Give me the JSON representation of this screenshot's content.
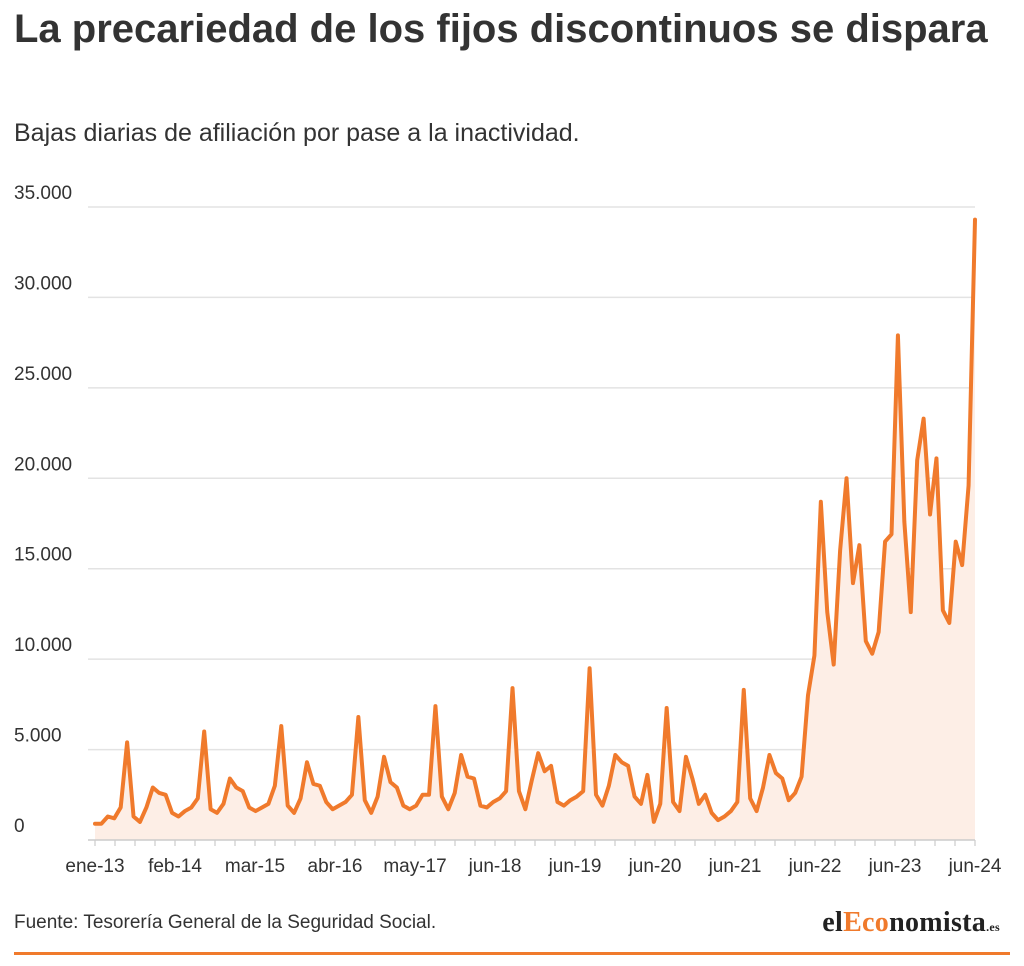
{
  "header": {
    "title": "La precariedad de los fijos discontinuos se dispara",
    "subtitle": "Bajas diarias de afiliación por pase a la inactividad."
  },
  "footer": {
    "source": "Fuente: Tesorería General de la Seguridad Social.",
    "logo": {
      "prefix": "el",
      "accent": "Eco",
      "suffix": "nomista",
      "tld": ".es"
    }
  },
  "colors": {
    "line": "#f07a2c",
    "area": "#fdeee6",
    "grid": "#e3e3e3",
    "text": "#333333",
    "logo_accent": "#f07a2c"
  },
  "chart_data": {
    "type": "area",
    "title": "La precariedad de los fijos discontinuos se dispara",
    "subtitle": "Bajas diarias de afiliación por pase a la inactividad.",
    "xlabel": "",
    "ylabel": "",
    "ylim": [
      0,
      35000
    ],
    "yticks": [
      0,
      5000,
      10000,
      15000,
      20000,
      25000,
      30000,
      35000
    ],
    "ytick_labels": [
      "0",
      "5.000",
      "10.000",
      "15.000",
      "20.000",
      "25.000",
      "30.000",
      "35.000"
    ],
    "xtick_labels": [
      "ene-13",
      "feb-14",
      "mar-15",
      "abr-16",
      "may-17",
      "jun-18",
      "jun-19",
      "jun-20",
      "jun-21",
      "jun-22",
      "jun-23",
      "jun-24"
    ],
    "grid": true,
    "legend": "none",
    "series": [
      {
        "values": [
          900,
          900,
          1300,
          1200,
          1800,
          5400,
          1300,
          1000,
          1800,
          2900,
          2600,
          2500,
          1500,
          1300,
          1600,
          1800,
          2300,
          6000,
          1700,
          1500,
          2000,
          3400,
          2900,
          2700,
          1800,
          1600,
          1800,
          2000,
          3000,
          6300,
          1900,
          1500,
          2300,
          4300,
          3100,
          3000,
          2100,
          1700,
          1900,
          2100,
          2500,
          6800,
          2200,
          1500,
          2400,
          4600,
          3200,
          2900,
          1900,
          1700,
          1900,
          2500,
          2500,
          7400,
          2400,
          1700,
          2600,
          4700,
          3500,
          3400,
          1900,
          1800,
          2100,
          2300,
          2700,
          8400,
          2700,
          1700,
          3300,
          4800,
          3800,
          4100,
          2100,
          1900,
          2200,
          2400,
          2700,
          9500,
          2500,
          1900,
          3000,
          4700,
          4300,
          4100,
          2400,
          2000,
          3600,
          1000,
          2000,
          7300,
          2100,
          1600,
          4600,
          3400,
          2000,
          2500,
          1500,
          1100,
          1300,
          1600,
          2100,
          8300,
          2300,
          1600,
          2900,
          4700,
          3700,
          3400,
          2200,
          2600,
          3500,
          8000,
          10200,
          18700,
          12600,
          9700,
          16000,
          20000,
          14200,
          16300,
          11000,
          10300,
          11500,
          16500,
          16900,
          27900,
          17600,
          12600,
          21000,
          23300,
          18000,
          21100,
          12700,
          12000,
          16500,
          15200,
          19600,
          34300
        ]
      }
    ]
  }
}
